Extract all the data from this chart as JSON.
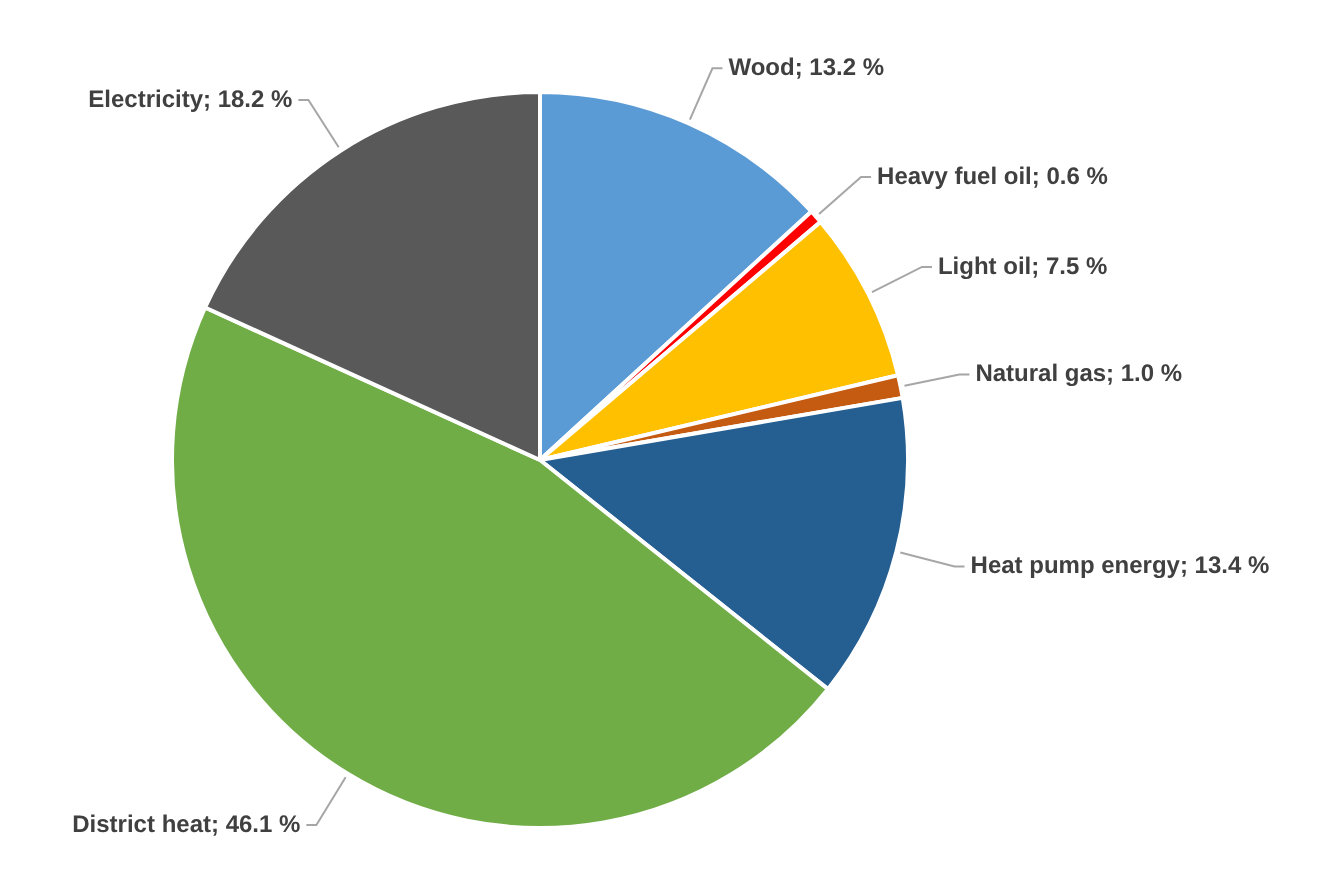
{
  "chart_data": {
    "type": "pie",
    "categories": [
      "Wood",
      "Heavy fuel oil",
      "Light oil",
      "Natural gas",
      "Heat pump energy",
      "District heat",
      "Electricity"
    ],
    "values": [
      13.2,
      0.6,
      7.5,
      1.0,
      13.4,
      46.1,
      18.2
    ],
    "value_labels": [
      "13.2 %",
      "0.6 %",
      "7.5 %",
      "1.0 %",
      "13.4 %",
      "46.1 %",
      "18.2 %"
    ],
    "colors": [
      "#5b9bd5",
      "#ff0000",
      "#ffc000",
      "#c55a11",
      "#255e91",
      "#70ad47",
      "#595959"
    ],
    "legend": false
  }
}
